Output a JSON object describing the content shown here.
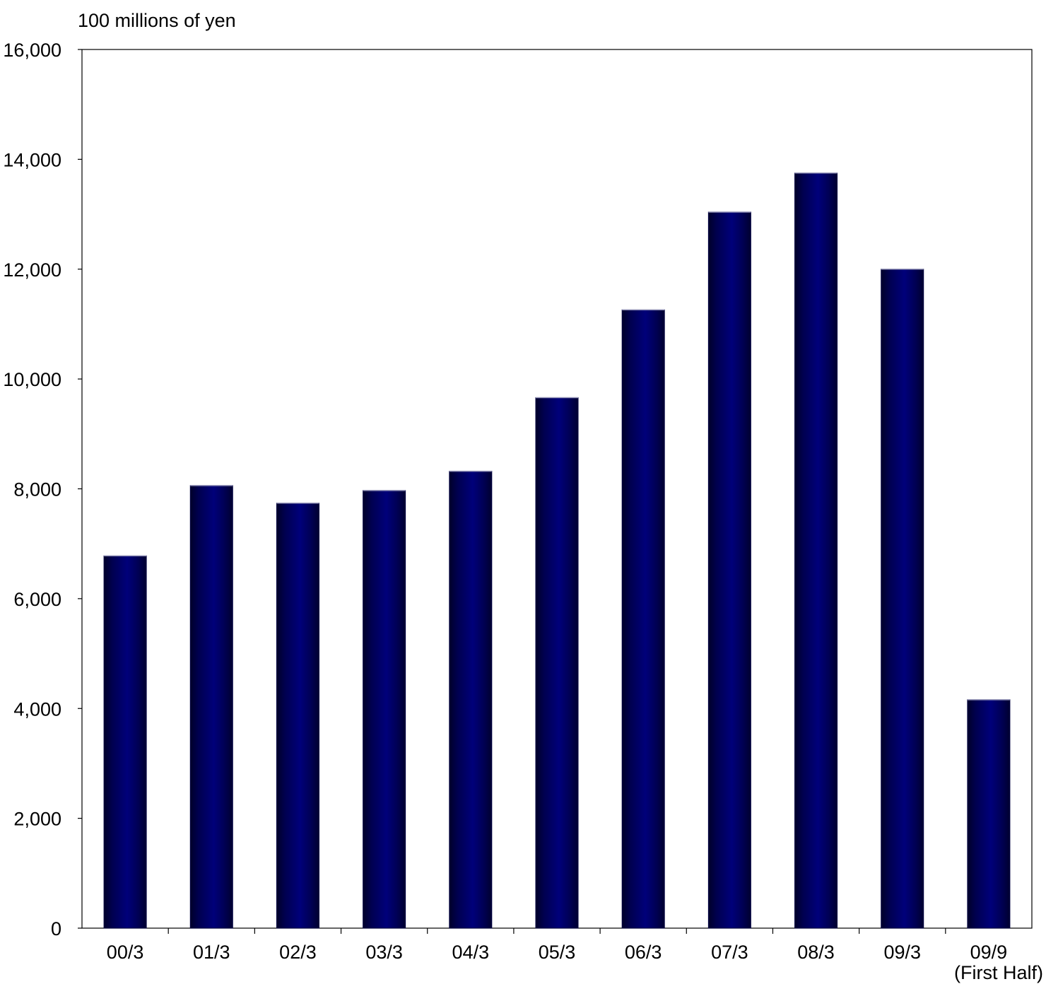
{
  "chart_data": {
    "type": "bar",
    "title": "",
    "ylabel": "100 millions of yen",
    "xlabel": "",
    "ylim": [
      0,
      16000
    ],
    "yticks": [
      0,
      2000,
      4000,
      6000,
      8000,
      10000,
      12000,
      14000,
      16000
    ],
    "ytick_labels": [
      "0",
      "2,000",
      "4,000",
      "6,000",
      "8,000",
      "10,000",
      "12,000",
      "14,000",
      "16,000"
    ],
    "categories": [
      "00/3",
      "01/3",
      "02/3",
      "03/3",
      "04/3",
      "05/3",
      "06/3",
      "07/3",
      "08/3",
      "09/3",
      "09/9"
    ],
    "category_sublabels": [
      "",
      "",
      "",
      "",
      "",
      "",
      "",
      "",
      "",
      "",
      "(First Half)"
    ],
    "values": [
      6780,
      8060,
      7740,
      7970,
      8320,
      9660,
      11260,
      13040,
      13750,
      12000,
      4160
    ],
    "grid": false,
    "legend": "none",
    "bar_color": "#000066",
    "bar_edge_color": "#000040"
  }
}
